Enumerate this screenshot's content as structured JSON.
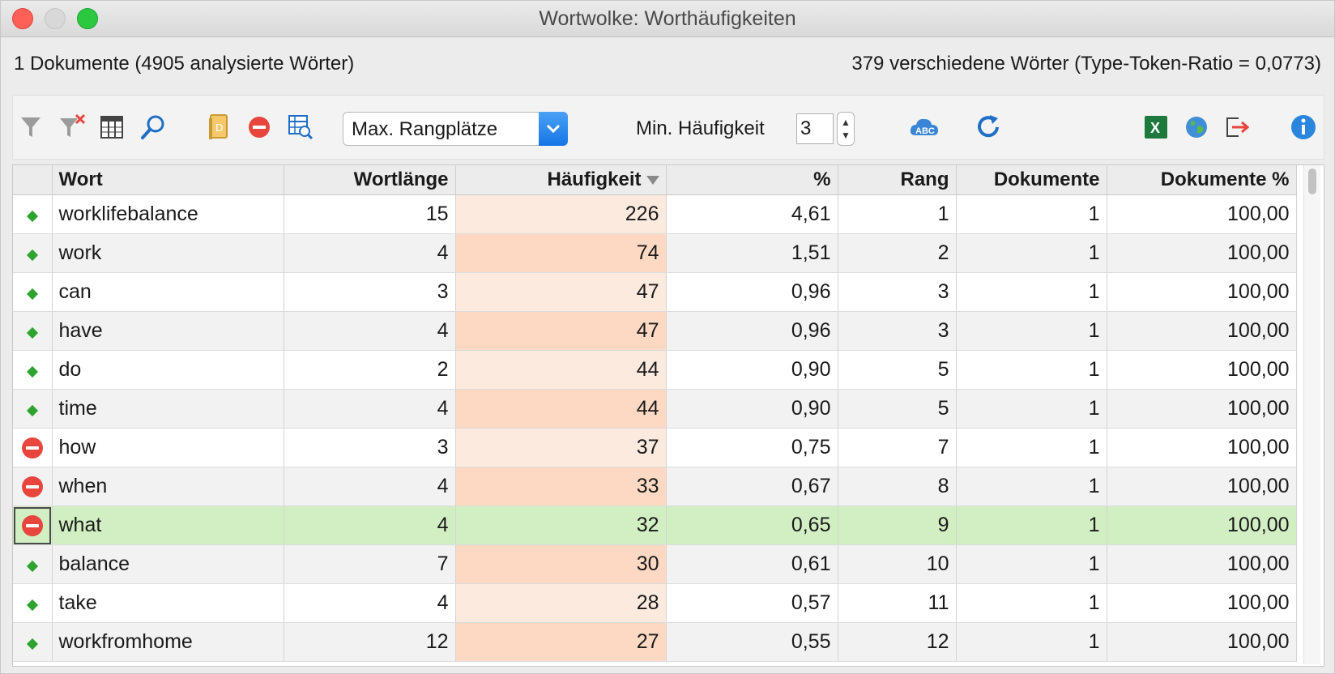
{
  "window": {
    "title": "Wortwolke: Worthäufigkeiten"
  },
  "info": {
    "left": "1 Dokumente (4905 analysierte Wörter)",
    "right": "379 verschiedene Wörter (Type-Token-Ratio = 0,0773)"
  },
  "toolbar": {
    "select_value": "Max. Rangplätze",
    "min_freq_label": "Min. Häufigkeit",
    "min_freq_value": "3",
    "icons": [
      "filter-icon",
      "clear-filter-icon",
      "columns-icon",
      "search-icon",
      "document-icon",
      "stop-list-icon",
      "table-search-icon",
      "word-cloud-icon",
      "refresh-icon",
      "excel-icon",
      "globe-icon",
      "export-icon",
      "info-icon"
    ]
  },
  "colors": {
    "accent": "#1675e6",
    "selected_row": "#d2efc3",
    "freq_odd": "#fdeade",
    "freq_even": "#fdd9c4",
    "stop": "#e8453c",
    "keep": "#2fa32f"
  },
  "table": {
    "headers": [
      "Wort",
      "Wortlänge",
      "Häufigkeit",
      "%",
      "Rang",
      "Dokumente",
      "Dokumente %"
    ],
    "rows": [
      {
        "status": "keep",
        "word": "worklifebalance",
        "len": "15",
        "freq": "226",
        "pct": "4,61",
        "rank": "1",
        "docs": "1",
        "docs_pct": "100,00"
      },
      {
        "status": "keep",
        "word": "work",
        "len": "4",
        "freq": "74",
        "pct": "1,51",
        "rank": "2",
        "docs": "1",
        "docs_pct": "100,00"
      },
      {
        "status": "keep",
        "word": "can",
        "len": "3",
        "freq": "47",
        "pct": "0,96",
        "rank": "3",
        "docs": "1",
        "docs_pct": "100,00"
      },
      {
        "status": "keep",
        "word": "have",
        "len": "4",
        "freq": "47",
        "pct": "0,96",
        "rank": "3",
        "docs": "1",
        "docs_pct": "100,00"
      },
      {
        "status": "keep",
        "word": "do",
        "len": "2",
        "freq": "44",
        "pct": "0,90",
        "rank": "5",
        "docs": "1",
        "docs_pct": "100,00"
      },
      {
        "status": "keep",
        "word": "time",
        "len": "4",
        "freq": "44",
        "pct": "0,90",
        "rank": "5",
        "docs": "1",
        "docs_pct": "100,00"
      },
      {
        "status": "stop",
        "word": "how",
        "len": "3",
        "freq": "37",
        "pct": "0,75",
        "rank": "7",
        "docs": "1",
        "docs_pct": "100,00"
      },
      {
        "status": "stop",
        "word": "when",
        "len": "4",
        "freq": "33",
        "pct": "0,67",
        "rank": "8",
        "docs": "1",
        "docs_pct": "100,00"
      },
      {
        "status": "stop",
        "word": "what",
        "len": "4",
        "freq": "32",
        "pct": "0,65",
        "rank": "9",
        "docs": "1",
        "docs_pct": "100,00",
        "selected": true
      },
      {
        "status": "keep",
        "word": "balance",
        "len": "7",
        "freq": "30",
        "pct": "0,61",
        "rank": "10",
        "docs": "1",
        "docs_pct": "100,00"
      },
      {
        "status": "keep",
        "word": "take",
        "len": "4",
        "freq": "28",
        "pct": "0,57",
        "rank": "11",
        "docs": "1",
        "docs_pct": "100,00"
      },
      {
        "status": "keep",
        "word": "workfromhome",
        "len": "12",
        "freq": "27",
        "pct": "0,55",
        "rank": "12",
        "docs": "1",
        "docs_pct": "100,00"
      }
    ]
  }
}
